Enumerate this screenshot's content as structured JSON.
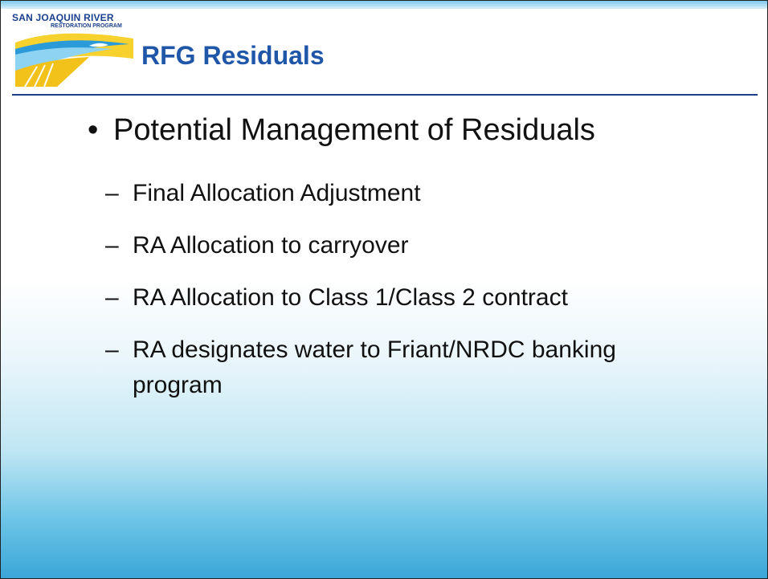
{
  "logo": {
    "line1": "SAN JOAQUIN RIVER",
    "line2": "RESTORATION PROGRAM"
  },
  "title": "RFG Residuals",
  "bullet": "Potential Management of Residuals",
  "sub_items": [
    "Final Allocation Adjustment",
    "RA Allocation to carryover",
    "RA Allocation to Class 1/Class 2 contract",
    "RA designates water to Friant/NRDC banking program"
  ]
}
